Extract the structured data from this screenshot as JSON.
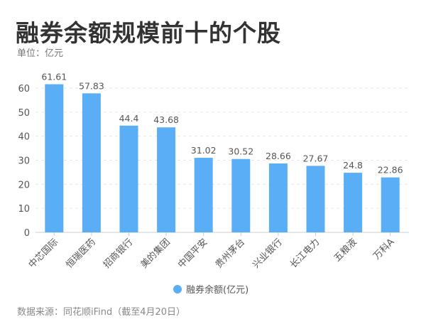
{
  "chart_data": {
    "type": "bar",
    "title": "融券余额规模前十的个股",
    "subtitle": "单位：亿元",
    "categories": [
      "中芯国际",
      "恒瑞医药",
      "招商银行",
      "美的集团",
      "中国平安",
      "贵州茅台",
      "兴业银行",
      "长江电力",
      "五粮液",
      "万科A"
    ],
    "series": [
      {
        "name": "融券余额(亿元)",
        "values": [
          61.61,
          57.83,
          44.4,
          43.68,
          31.02,
          30.52,
          28.66,
          27.67,
          24.8,
          22.86
        ],
        "color": "#5aaef5"
      }
    ],
    "yticks": [
      0,
      10,
      20,
      30,
      40,
      50,
      60
    ],
    "ylim": [
      0,
      65
    ],
    "legend": "bottom",
    "grid": true,
    "source": "数据来源：同花顺iFind（截至4月20日）"
  }
}
